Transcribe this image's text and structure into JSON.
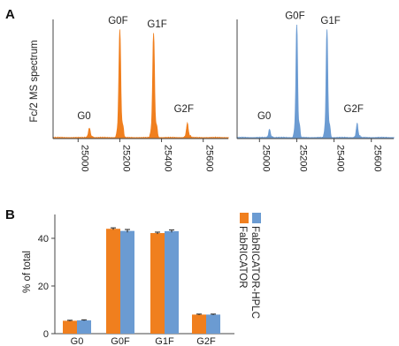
{
  "panels": {
    "a_letter": "A",
    "b_letter": "B"
  },
  "colors": {
    "fabricator": "#f07f1e",
    "fabricator_hplc": "#6b9bd2",
    "axis": "#444444"
  },
  "chart_data": [
    {
      "type": "line",
      "panel": "A",
      "ylabel": "Fc/2 MS spectrum",
      "xlabel": "",
      "xlim": [
        24880,
        25720
      ],
      "x_ticks": [
        25000,
        25200,
        25400,
        25600
      ],
      "tick_labels": [
        "25000",
        "25200",
        "25400",
        "25600"
      ],
      "subplots": [
        {
          "color": "#f07f1e",
          "peaks": [
            {
              "label": "G0",
              "x": 25054,
              "height": 0.08
            },
            {
              "label": "G0F",
              "x": 25200,
              "height": 0.91
            },
            {
              "label": "G1F",
              "x": 25362,
              "height": 0.88
            },
            {
              "label": "G2F",
              "x": 25524,
              "height": 0.12
            }
          ]
        },
        {
          "color": "#6b9bd2",
          "peaks": [
            {
              "label": "G0",
              "x": 25054,
              "height": 0.07
            },
            {
              "label": "G0F",
              "x": 25200,
              "height": 0.95
            },
            {
              "label": "G1F",
              "x": 25362,
              "height": 0.91
            },
            {
              "label": "G2F",
              "x": 25524,
              "height": 0.12
            }
          ]
        }
      ]
    },
    {
      "type": "bar",
      "panel": "B",
      "categories": [
        "G0",
        "G0F",
        "G1F",
        "G2F"
      ],
      "ylabel": "% of total",
      "xlabel": "",
      "ylim": [
        0,
        50
      ],
      "y_ticks": [
        0,
        20,
        40
      ],
      "series": [
        {
          "name": "FabRICATOR",
          "color": "#f07f1e",
          "values": [
            5.4,
            44.0,
            42.2,
            8.0
          ],
          "errors": [
            0.2,
            0.4,
            0.4,
            0.2
          ]
        },
        {
          "name": "FabRICATOR-HPLC",
          "color": "#6b9bd2",
          "values": [
            5.6,
            43.1,
            43.0,
            8.0
          ],
          "errors": [
            0.2,
            0.6,
            0.5,
            0.2
          ]
        }
      ]
    }
  ]
}
